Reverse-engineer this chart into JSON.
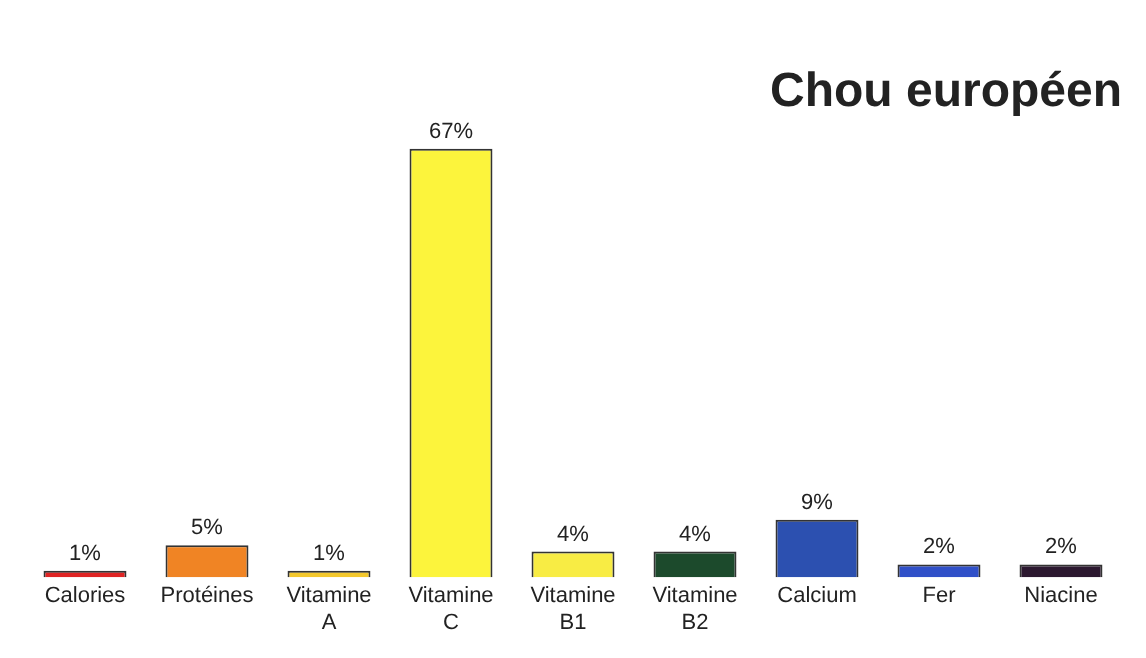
{
  "chart_data": {
    "type": "bar",
    "title": "Chou européen",
    "categories": [
      "Calories",
      "Protéines",
      "Vitamine A",
      "Vitamine C",
      "Vitamine B1",
      "Vitamine B2",
      "Calcium",
      "Fer",
      "Niacine"
    ],
    "values": [
      1,
      5,
      1,
      67,
      4,
      4,
      9,
      2,
      2
    ],
    "value_labels": [
      "1%",
      "5%",
      "1%",
      "67%",
      "4%",
      "4%",
      "9%",
      "2%",
      "2%"
    ],
    "colors": [
      "#e02424",
      "#f08424",
      "#f4c82c",
      "#fcf43c",
      "#f8ec44",
      "#1c4a2c",
      "#2c50b0",
      "#3050c8",
      "#2c1830"
    ],
    "tick_labels": "x",
    "grid": false,
    "legend": false
  }
}
